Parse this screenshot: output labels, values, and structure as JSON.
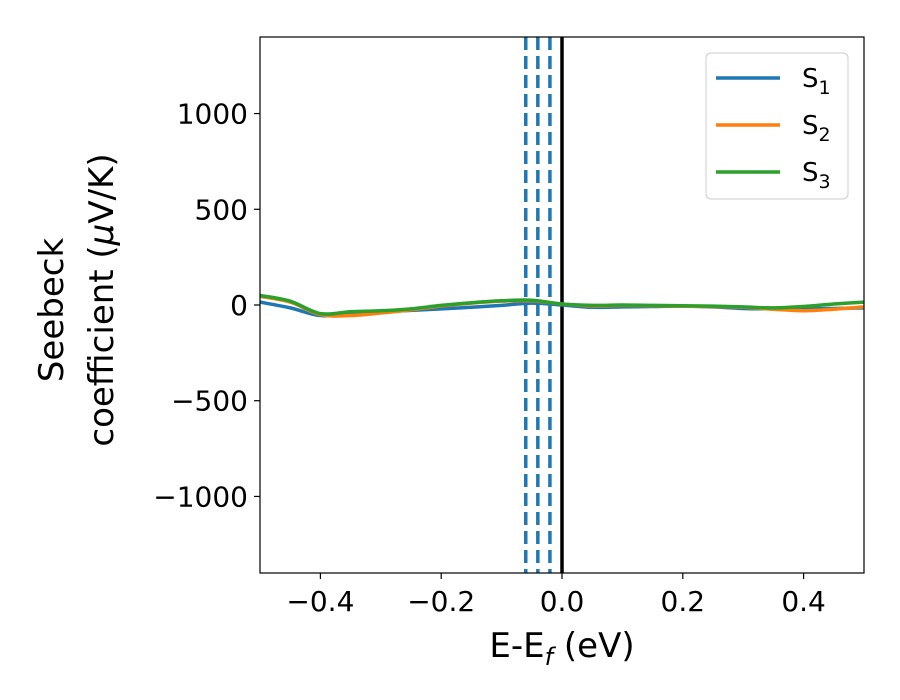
{
  "chart_data": {
    "type": "line",
    "title": "",
    "xlabel": {
      "main": "E-E",
      "sub": "f",
      "suffix": " (eV)"
    },
    "ylabel": {
      "line1": "Seebeck",
      "line2_prefix": "coefficient  (",
      "mu": "μ",
      "line2_suffix": "V/K)"
    },
    "xlim": [
      -0.5,
      0.5
    ],
    "ylim": [
      -1400,
      1400
    ],
    "x_ticks": [
      -0.4,
      -0.2,
      0.0,
      0.2,
      0.4
    ],
    "x_tick_labels": [
      "−0.4",
      "−0.2",
      "0.0",
      "0.2",
      "0.4"
    ],
    "y_ticks": [
      -1000,
      -500,
      0,
      500,
      1000
    ],
    "y_tick_labels": [
      "−1000",
      "−500",
      "0",
      "500",
      "1000"
    ],
    "grid": false,
    "legend_position": "top-right",
    "series": [
      {
        "name": "S",
        "name_sub": "1",
        "color": "#1f77b4",
        "x": [
          -0.5,
          -0.45,
          -0.4,
          -0.35,
          -0.3,
          -0.25,
          -0.2,
          -0.15,
          -0.1,
          -0.05,
          0.0,
          0.05,
          0.1,
          0.15,
          0.2,
          0.25,
          0.3,
          0.35,
          0.4,
          0.45,
          0.5
        ],
        "y": [
          15,
          -15,
          -55,
          -45,
          -35,
          -28,
          -20,
          -12,
          -2,
          10,
          0,
          -12,
          -10,
          -8,
          -6,
          -10,
          -18,
          -20,
          -20,
          -18,
          -15
        ]
      },
      {
        "name": "S",
        "name_sub": "2",
        "color": "#ff7f0e",
        "x": [
          -0.5,
          -0.45,
          -0.4,
          -0.35,
          -0.3,
          -0.25,
          -0.2,
          -0.15,
          -0.1,
          -0.05,
          0.0,
          0.05,
          0.1,
          0.15,
          0.2,
          0.25,
          0.3,
          0.35,
          0.4,
          0.45,
          0.5
        ],
        "y": [
          45,
          15,
          -50,
          -55,
          -42,
          -25,
          -5,
          10,
          20,
          22,
          5,
          -5,
          -2,
          -4,
          -6,
          -8,
          -12,
          -22,
          -30,
          -22,
          -10
        ]
      },
      {
        "name": "S",
        "name_sub": "3",
        "color": "#2ca02c",
        "x": [
          -0.5,
          -0.45,
          -0.4,
          -0.35,
          -0.3,
          -0.25,
          -0.2,
          -0.15,
          -0.1,
          -0.05,
          0.0,
          0.05,
          0.1,
          0.15,
          0.2,
          0.25,
          0.3,
          0.35,
          0.4,
          0.45,
          0.5
        ],
        "y": [
          50,
          20,
          -45,
          -35,
          -30,
          -20,
          -2,
          12,
          22,
          25,
          5,
          -2,
          0,
          -2,
          -4,
          -6,
          -10,
          -15,
          -8,
          5,
          15
        ]
      }
    ],
    "vlines": [
      {
        "x": -0.06,
        "style": "dashed",
        "color": "#1f77b4"
      },
      {
        "x": -0.04,
        "style": "dashed",
        "color": "#1f77b4"
      },
      {
        "x": -0.02,
        "style": "dashed",
        "color": "#1f77b4"
      },
      {
        "x": 0.0,
        "style": "solid",
        "color": "#000000"
      }
    ]
  }
}
